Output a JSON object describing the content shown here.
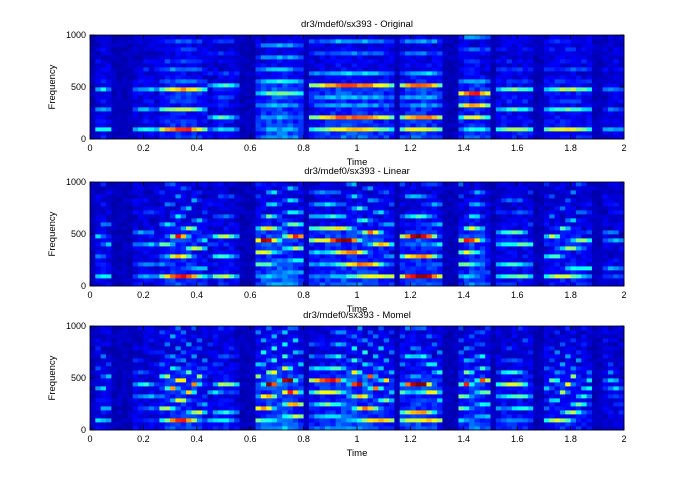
{
  "figure": {
    "colormap": [
      "#00008f",
      "#0000ff",
      "#0080ff",
      "#00ffff",
      "#80ff80",
      "#ffff00",
      "#ff8000",
      "#ff0000",
      "#800000"
    ]
  },
  "chart_data": [
    {
      "type": "heatmap",
      "title": "dr3/mdef0/sx393 - Original",
      "xlabel": "Time",
      "ylabel": "Frequency",
      "xlim": [
        0,
        2
      ],
      "ylim": [
        0,
        1000
      ],
      "xticks": [
        "0",
        "0.2",
        "0.4",
        "0.6",
        "0.8",
        "1",
        "1.2",
        "1.4",
        "1.6",
        "1.8",
        "2"
      ],
      "yticks": [
        "0",
        "500",
        "1000"
      ],
      "grid": false
    },
    {
      "type": "heatmap",
      "title": "dr3/mdef0/sx393 - Linear",
      "xlabel": "Time",
      "ylabel": "Frequency",
      "xlim": [
        0,
        2
      ],
      "ylim": [
        0,
        1000
      ],
      "xticks": [
        "0",
        "0.2",
        "0.4",
        "0.6",
        "0.8",
        "1",
        "1.2",
        "1.4",
        "1.6",
        "1.8",
        "2"
      ],
      "yticks": [
        "0",
        "500",
        "1000"
      ],
      "grid": false
    },
    {
      "type": "heatmap",
      "title": "dr3/mdef0/sx393 - Momel",
      "xlabel": "Time",
      "ylabel": "Frequency",
      "xlim": [
        0,
        2
      ],
      "ylim": [
        0,
        1000
      ],
      "xticks": [
        "0",
        "0.2",
        "0.4",
        "0.6",
        "0.8",
        "1",
        "1.2",
        "1.4",
        "1.6",
        "1.8",
        "2"
      ],
      "yticks": [
        "0",
        "500",
        "1000"
      ],
      "grid": false
    }
  ]
}
